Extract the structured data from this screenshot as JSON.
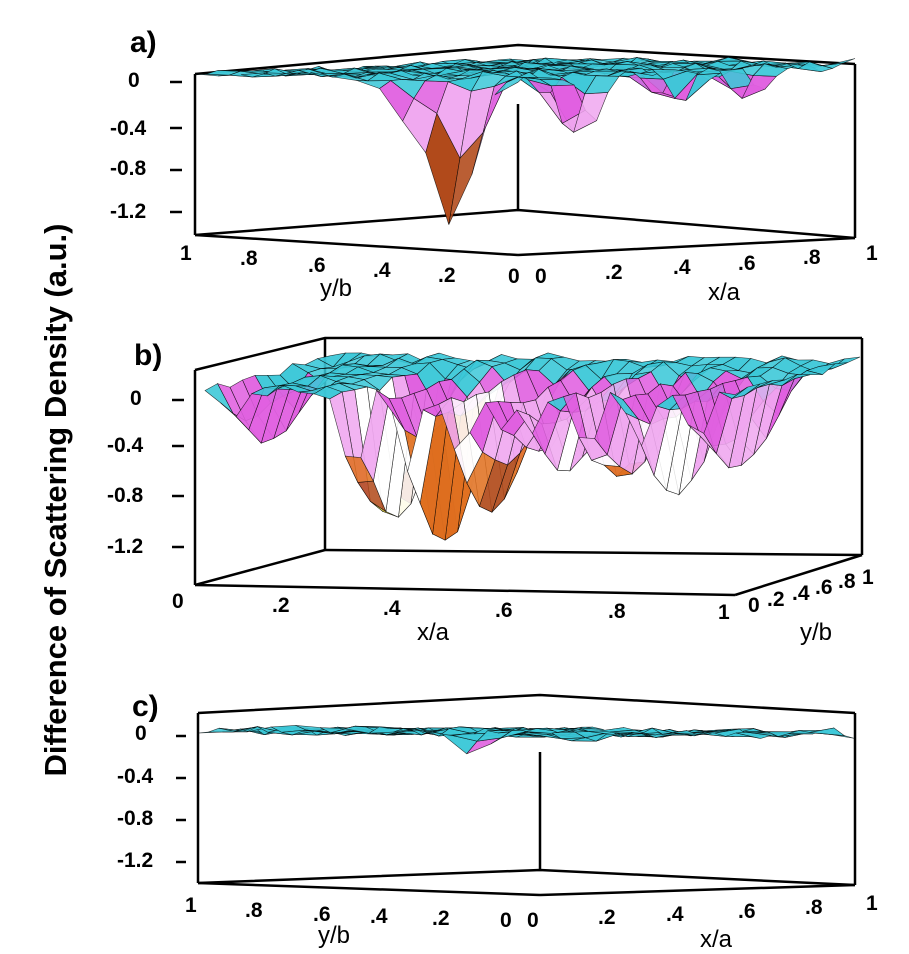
{
  "chart_data": {
    "type": "surface",
    "ylabel": "Difference of Scattering Density (a.u.)",
    "colors": {
      "surface": "#3cc8d8",
      "magenta": "#e060e0",
      "pink": "#f0a8f0",
      "white": "#ffffff",
      "orange": "#e07020",
      "brown": "#b04818",
      "yellow": "#f0e050",
      "green": "#70e040"
    },
    "panels": [
      {
        "label": "a)",
        "z_ticks": [
          "0",
          "-0.4",
          "-0.8",
          "-1.2"
        ],
        "zlim": [
          -1.4,
          0.1
        ],
        "y_ticks": [
          "1",
          ".8",
          ".6",
          ".4",
          ".2",
          "0"
        ],
        "x_ticks": [
          "0",
          ".2",
          ".4",
          ".6",
          ".8",
          "1"
        ],
        "y_name": "y/b",
        "x_name": "x/a",
        "wells": [
          {
            "x": 0.0,
            "y": 0.2,
            "depth": -1.4
          },
          {
            "x": 0.22,
            "y": 0.05,
            "depth": -0.65
          },
          {
            "x": 0.55,
            "y": 0.1,
            "depth": -0.35
          },
          {
            "x": 0.72,
            "y": 0.05,
            "depth": -0.3
          },
          {
            "x": 0.0,
            "y": 0.35,
            "depth": -0.35
          }
        ]
      },
      {
        "label": "b)",
        "z_ticks": [
          "0",
          "-0.4",
          "-0.8",
          "-1.2"
        ],
        "zlim": [
          -1.4,
          0.1
        ],
        "x_ticks": [
          "0",
          ".2",
          ".4",
          ".6",
          ".8",
          "1"
        ],
        "y_ticks": [
          "0",
          ".2",
          ".4",
          ".6",
          ".8",
          "1"
        ],
        "x_name": "x/a",
        "y_name": "y/b",
        "wells": [
          {
            "x": 0.05,
            "y": 0.3,
            "depth": -0.55
          },
          {
            "x": 0.28,
            "y": 0.3,
            "depth": -1.45
          },
          {
            "x": 0.38,
            "y": 0.3,
            "depth": -1.3
          },
          {
            "x": 0.48,
            "y": 0.3,
            "depth": -1.2
          },
          {
            "x": 0.56,
            "y": 0.3,
            "depth": -0.55
          },
          {
            "x": 0.62,
            "y": 0.3,
            "depth": -0.7
          },
          {
            "x": 0.72,
            "y": 0.3,
            "depth": -1.0
          },
          {
            "x": 0.82,
            "y": 0.3,
            "depth": -0.9
          },
          {
            "x": 0.93,
            "y": 0.3,
            "depth": -0.8
          }
        ]
      },
      {
        "label": "c)",
        "z_ticks": [
          "0",
          "-0.4",
          "-0.8",
          "-1.2"
        ],
        "zlim": [
          -1.4,
          0.1
        ],
        "y_ticks": [
          "1",
          ".8",
          ".6",
          ".4",
          ".2",
          "0"
        ],
        "x_ticks": [
          "0",
          ".2",
          ".4",
          ".6",
          ".8",
          "1"
        ],
        "y_name": "y/b",
        "x_name": "x/a",
        "wells": [
          {
            "x": 0.0,
            "y": 0.2,
            "depth": -0.2
          },
          {
            "x": 0.35,
            "y": 0.2,
            "depth": -0.12
          }
        ]
      }
    ]
  }
}
